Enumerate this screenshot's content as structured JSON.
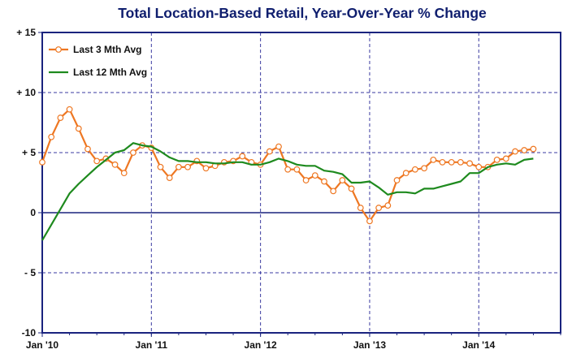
{
  "chart_data": {
    "type": "line",
    "title": "Total Location-Based Retail, Year-Over-Year % Change",
    "xlabel": "",
    "ylabel": "",
    "ylim": [
      -10,
      15
    ],
    "yticks": [
      15,
      10,
      5,
      0,
      -5,
      -10
    ],
    "ytick_labels": [
      "+ 15",
      "+ 10",
      "+ 5",
      "0",
      "- 5",
      "-10"
    ],
    "x_start": "2010-01",
    "x_end": "2014-10",
    "xticks": [
      "2010-01",
      "2011-01",
      "2012-01",
      "2013-01",
      "2014-01"
    ],
    "xtick_labels": [
      "Jan '10",
      "Jan '11",
      "Jan '12",
      "Jan '13",
      "Jan '14"
    ],
    "grid": true,
    "legend_position": "top-left",
    "series": [
      {
        "name": "Last 3 Mth Avg",
        "color": "#ee7722",
        "marker": "circle",
        "x": [
          "2010-01",
          "2010-02",
          "2010-03",
          "2010-04",
          "2010-05",
          "2010-06",
          "2010-07",
          "2010-08",
          "2010-09",
          "2010-10",
          "2010-11",
          "2010-12",
          "2011-01",
          "2011-02",
          "2011-03",
          "2011-04",
          "2011-05",
          "2011-06",
          "2011-07",
          "2011-08",
          "2011-09",
          "2011-10",
          "2011-11",
          "2011-12",
          "2012-01",
          "2012-02",
          "2012-03",
          "2012-04",
          "2012-05",
          "2012-06",
          "2012-07",
          "2012-08",
          "2012-09",
          "2012-10",
          "2012-11",
          "2012-12",
          "2013-01",
          "2013-02",
          "2013-03",
          "2013-04",
          "2013-05",
          "2013-06",
          "2013-07",
          "2013-08",
          "2013-09",
          "2013-10",
          "2013-11",
          "2013-12",
          "2014-01",
          "2014-02",
          "2014-03",
          "2014-04",
          "2014-05",
          "2014-06",
          "2014-07"
        ],
        "values": [
          4.2,
          6.3,
          7.9,
          8.6,
          7.0,
          5.3,
          4.3,
          4.5,
          4.0,
          3.3,
          5.0,
          5.6,
          5.4,
          3.8,
          2.9,
          3.8,
          3.8,
          4.3,
          3.7,
          3.9,
          4.2,
          4.3,
          4.7,
          4.2,
          4.0,
          5.1,
          5.5,
          3.6,
          3.6,
          2.7,
          3.1,
          2.6,
          1.8,
          2.7,
          2.0,
          0.4,
          -0.7,
          0.4,
          0.6,
          2.7,
          3.3,
          3.6,
          3.7,
          4.4,
          4.2,
          4.2,
          4.2,
          4.1,
          3.8,
          3.8,
          4.4,
          4.5,
          5.1,
          5.2,
          5.3
        ]
      },
      {
        "name": "Last 12 Mth Avg",
        "color": "#1e8a1e",
        "marker": "none",
        "x": [
          "2010-01",
          "2010-02",
          "2010-03",
          "2010-04",
          "2010-05",
          "2010-06",
          "2010-07",
          "2010-08",
          "2010-09",
          "2010-10",
          "2010-11",
          "2010-12",
          "2011-01",
          "2011-02",
          "2011-03",
          "2011-04",
          "2011-05",
          "2011-06",
          "2011-07",
          "2011-08",
          "2011-09",
          "2011-10",
          "2011-11",
          "2011-12",
          "2012-01",
          "2012-02",
          "2012-03",
          "2012-04",
          "2012-05",
          "2012-06",
          "2012-07",
          "2012-08",
          "2012-09",
          "2012-10",
          "2012-11",
          "2012-12",
          "2013-01",
          "2013-02",
          "2013-03",
          "2013-04",
          "2013-05",
          "2013-06",
          "2013-07",
          "2013-08",
          "2013-09",
          "2013-10",
          "2013-11",
          "2013-12",
          "2014-01",
          "2014-02",
          "2014-03",
          "2014-04",
          "2014-05",
          "2014-06",
          "2014-07"
        ],
        "values": [
          -2.3,
          -1.0,
          0.3,
          1.6,
          2.4,
          3.1,
          3.8,
          4.4,
          5.0,
          5.2,
          5.8,
          5.6,
          5.5,
          5.1,
          4.6,
          4.3,
          4.3,
          4.2,
          4.2,
          4.1,
          4.1,
          4.2,
          4.2,
          4.0,
          4.0,
          4.2,
          4.5,
          4.3,
          4.0,
          3.9,
          3.9,
          3.5,
          3.4,
          3.2,
          2.5,
          2.5,
          2.6,
          2.1,
          1.5,
          1.7,
          1.7,
          1.6,
          2.0,
          2.0,
          2.2,
          2.4,
          2.6,
          3.3,
          3.3,
          3.8,
          4.0,
          4.1,
          4.0,
          4.4,
          4.5
        ]
      }
    ]
  }
}
